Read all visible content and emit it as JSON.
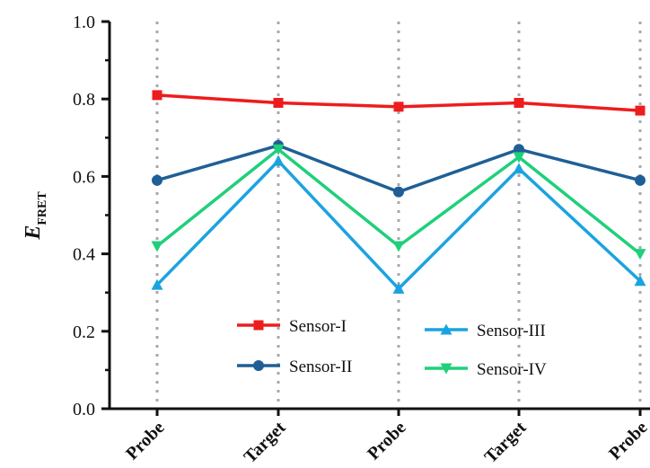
{
  "chart_data": {
    "type": "line",
    "title": "",
    "xlabel": "",
    "ylabel": "E",
    "ylabel_subscript": "FRET",
    "categories": [
      "Probe",
      "Target",
      "Probe",
      "Target",
      "Probe"
    ],
    "ylim": [
      0.0,
      1.0
    ],
    "yticks": [
      "0.0",
      "0.2",
      "0.4",
      "0.6",
      "0.8",
      "1.0"
    ],
    "grid": "dotted vertical lines at each category",
    "legend_position": "lower-center",
    "series": [
      {
        "name": "Sensor-I",
        "color": "#ee1c1c",
        "marker": "square",
        "values": [
          0.81,
          0.79,
          0.78,
          0.79,
          0.77
        ]
      },
      {
        "name": "Sensor-II",
        "color": "#1f5f96",
        "marker": "circle",
        "values": [
          0.59,
          0.68,
          0.56,
          0.67,
          0.59
        ]
      },
      {
        "name": "Sensor-III",
        "color": "#1ba3e0",
        "marker": "triangle-up",
        "values": [
          0.32,
          0.64,
          0.31,
          0.62,
          0.33
        ]
      },
      {
        "name": "Sensor-IV",
        "color": "#1ed07a",
        "marker": "triangle-down",
        "values": [
          0.42,
          0.67,
          0.42,
          0.65,
          0.4
        ]
      }
    ]
  }
}
